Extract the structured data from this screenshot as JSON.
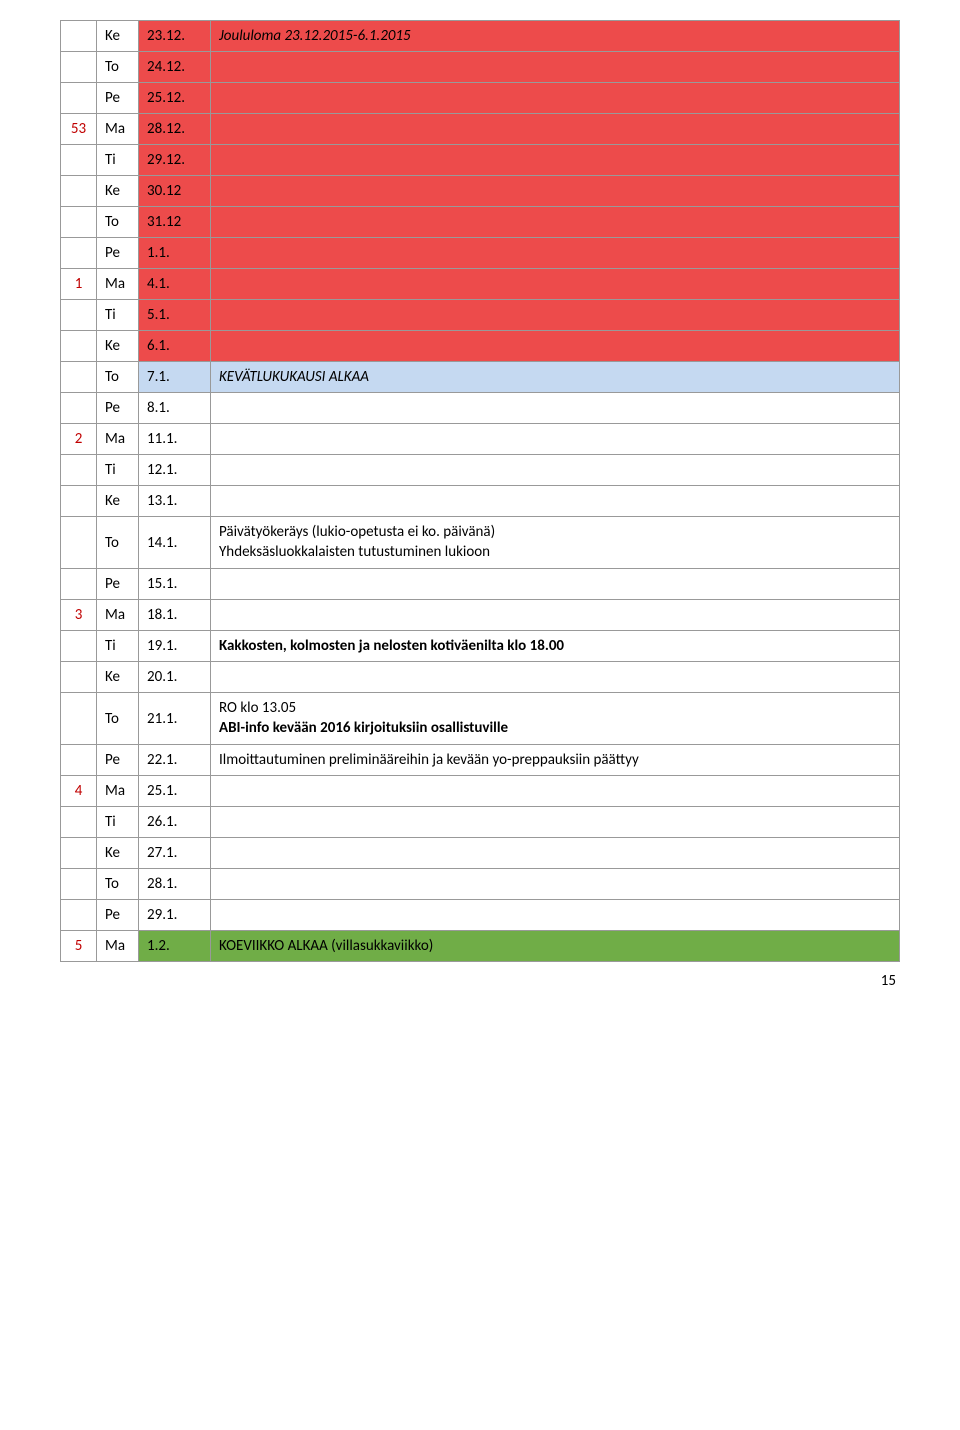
{
  "colors": {
    "row_red": "#ed4b4b",
    "row_blue": "#c5d9f1",
    "row_green": "#70ad47",
    "week_text_red": "#c00000",
    "border": "#999999",
    "text": "#000000",
    "background": "#ffffff"
  },
  "page_number": "15",
  "rows": [
    {
      "week": "",
      "day": "Ke",
      "date": "23.12.",
      "desc": "Joululoma 23.12.2015-6.1.2015",
      "bg": "red",
      "desc_italic": true
    },
    {
      "week": "",
      "day": "To",
      "date": "24.12.",
      "desc": "",
      "bg": "red"
    },
    {
      "week": "",
      "day": "Pe",
      "date": "25.12.",
      "desc": "",
      "bg": "red"
    },
    {
      "week": "53",
      "day": "Ma",
      "date": "28.12.",
      "desc": "",
      "bg": "red",
      "week_red": true
    },
    {
      "week": "",
      "day": "Ti",
      "date": "29.12.",
      "desc": "",
      "bg": "red"
    },
    {
      "week": "",
      "day": "Ke",
      "date": "30.12",
      "desc": "",
      "bg": "red"
    },
    {
      "week": "",
      "day": "To",
      "date": "31.12",
      "desc": "",
      "bg": "red"
    },
    {
      "week": "",
      "day": "Pe",
      "date": "1.1.",
      "desc": "",
      "bg": "red"
    },
    {
      "week": "1",
      "day": "Ma",
      "date": "4.1.",
      "desc": "",
      "bg": "red",
      "week_red": true
    },
    {
      "week": "",
      "day": "Ti",
      "date": "5.1.",
      "desc": "",
      "bg": "red"
    },
    {
      "week": "",
      "day": "Ke",
      "date": "6.1.",
      "desc": "",
      "bg": "red"
    },
    {
      "week": "",
      "day": "To",
      "date": "7.1.",
      "desc": "KEVÄTLUKUKAUSI ALKAA",
      "bg": "blue",
      "desc_italic": true
    },
    {
      "week": "",
      "day": "Pe",
      "date": "8.1.",
      "desc": ""
    },
    {
      "week": "2",
      "day": "Ma",
      "date": "11.1.",
      "desc": "",
      "week_red": true
    },
    {
      "week": "",
      "day": "Ti",
      "date": "12.1.",
      "desc": ""
    },
    {
      "week": "",
      "day": "Ke",
      "date": "13.1.",
      "desc": ""
    },
    {
      "week": "",
      "day": "To",
      "date": "14.1.",
      "desc_lines": [
        "Päivätyökeräys (lukio-opetusta ei ko. päivänä)",
        "Yhdeksäsluokkalaisten tutustuminen lukioon"
      ]
    },
    {
      "week": "",
      "day": "Pe",
      "date": "15.1.",
      "desc": ""
    },
    {
      "week": "3",
      "day": "Ma",
      "date": "18.1.",
      "desc": "",
      "week_red": true
    },
    {
      "week": "",
      "day": "Ti",
      "date": "19.1.",
      "desc": "Kakkosten, kolmosten ja nelosten  kotiväenilta klo 18.00",
      "desc_bold": true
    },
    {
      "week": "",
      "day": "Ke",
      "date": "20.1.",
      "desc": ""
    },
    {
      "week": "",
      "day": "To",
      "date": "21.1.",
      "desc_lines": [
        "RO klo 13.05",
        "ABI-info kevään 2016 kirjoituksiin osallistuville"
      ],
      "line_bold": [
        false,
        true
      ]
    },
    {
      "week": "",
      "day": "Pe",
      "date": "22.1.",
      "desc": "Ilmoittautuminen preliminääreihin ja kevään yo-preppauksiin päättyy"
    },
    {
      "week": "4",
      "day": "Ma",
      "date": "25.1.",
      "desc": "",
      "week_red": true
    },
    {
      "week": "",
      "day": "Ti",
      "date": "26.1.",
      "desc": ""
    },
    {
      "week": "",
      "day": "Ke",
      "date": "27.1.",
      "desc": ""
    },
    {
      "week": "",
      "day": "To",
      "date": "28.1.",
      "desc": ""
    },
    {
      "week": "",
      "day": "Pe",
      "date": "29.1.",
      "desc": ""
    },
    {
      "week": "5",
      "day": "Ma",
      "date": "1.2.",
      "desc": "KOEVIIKKO ALKAA (villasukkaviikko)",
      "bg": "green",
      "week_red": true
    }
  ]
}
